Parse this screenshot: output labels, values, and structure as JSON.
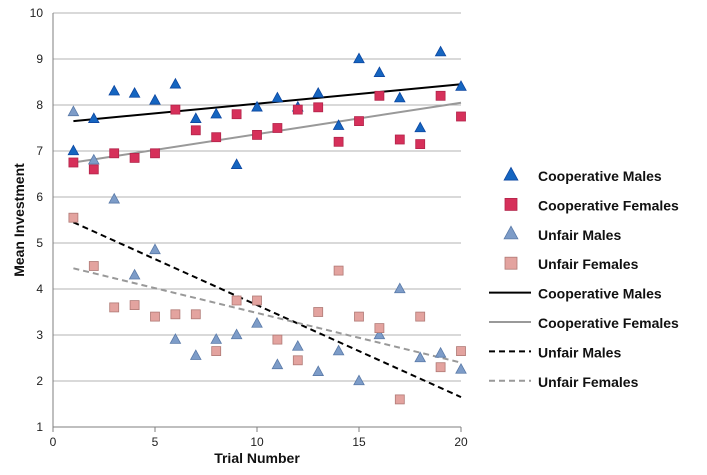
{
  "chart_data": {
    "type": "scatter",
    "xlabel": "Trial Number",
    "ylabel": "Mean Investment",
    "xlim": [
      0,
      20
    ],
    "ylim": [
      1,
      10
    ],
    "x_ticks": [
      "0",
      "5",
      "10",
      "15",
      "20"
    ],
    "y_ticks": [
      "1",
      "2",
      "3",
      "4",
      "5",
      "6",
      "7",
      "8",
      "9",
      "10"
    ],
    "grid": "horizontal",
    "legend_position": "right",
    "x": [
      1,
      2,
      3,
      4,
      5,
      6,
      7,
      8,
      9,
      10,
      11,
      12,
      13,
      14,
      15,
      16,
      17,
      18,
      19,
      20
    ],
    "series": [
      {
        "name": "Cooperative Males",
        "marker": "triangle",
        "color": "#1565c0",
        "values": [
          7.0,
          7.7,
          8.3,
          8.25,
          8.1,
          8.45,
          7.7,
          7.8,
          6.7,
          7.95,
          8.15,
          7.95,
          8.25,
          7.55,
          9.0,
          8.7,
          8.15,
          7.5,
          9.15,
          8.4
        ]
      },
      {
        "name": "Cooperative Females",
        "marker": "square",
        "color": "#d6305a",
        "values": [
          6.75,
          6.6,
          6.95,
          6.85,
          6.95,
          7.9,
          7.45,
          7.3,
          7.8,
          7.35,
          7.5,
          7.9,
          7.95,
          7.2,
          7.65,
          8.2,
          7.25,
          7.15,
          8.2,
          7.75
        ]
      },
      {
        "name": "Unfair Males",
        "marker": "triangle",
        "color": "#7d9cc8",
        "values": [
          7.85,
          6.8,
          5.95,
          4.3,
          4.85,
          2.9,
          2.55,
          2.9,
          3.0,
          3.25,
          2.35,
          2.75,
          2.2,
          2.65,
          2.0,
          3.0,
          4.0,
          2.5,
          2.6,
          2.25
        ]
      },
      {
        "name": "Unfair Females",
        "marker": "square",
        "color": "#e3a39f",
        "values": [
          5.55,
          4.5,
          3.6,
          3.65,
          3.4,
          3.45,
          3.45,
          2.65,
          3.75,
          3.75,
          2.9,
          2.45,
          3.5,
          4.4,
          3.4,
          3.15,
          1.6,
          3.4,
          2.3,
          2.65
        ]
      }
    ],
    "trendlines": [
      {
        "name": "Cooperative Males",
        "style": "solid",
        "color": "#000000",
        "from": [
          1,
          7.65
        ],
        "to": [
          20,
          8.45
        ]
      },
      {
        "name": "Cooperative Females",
        "style": "solid",
        "color": "#999999",
        "from": [
          1,
          6.75
        ],
        "to": [
          20,
          8.05
        ]
      },
      {
        "name": "Unfair Males",
        "style": "dashed",
        "color": "#000000",
        "from": [
          1,
          5.45
        ],
        "to": [
          20,
          1.65
        ]
      },
      {
        "name": "Unfair Females",
        "style": "dashed",
        "color": "#999999",
        "from": [
          1,
          4.45
        ],
        "to": [
          20,
          2.4
        ]
      }
    ]
  }
}
